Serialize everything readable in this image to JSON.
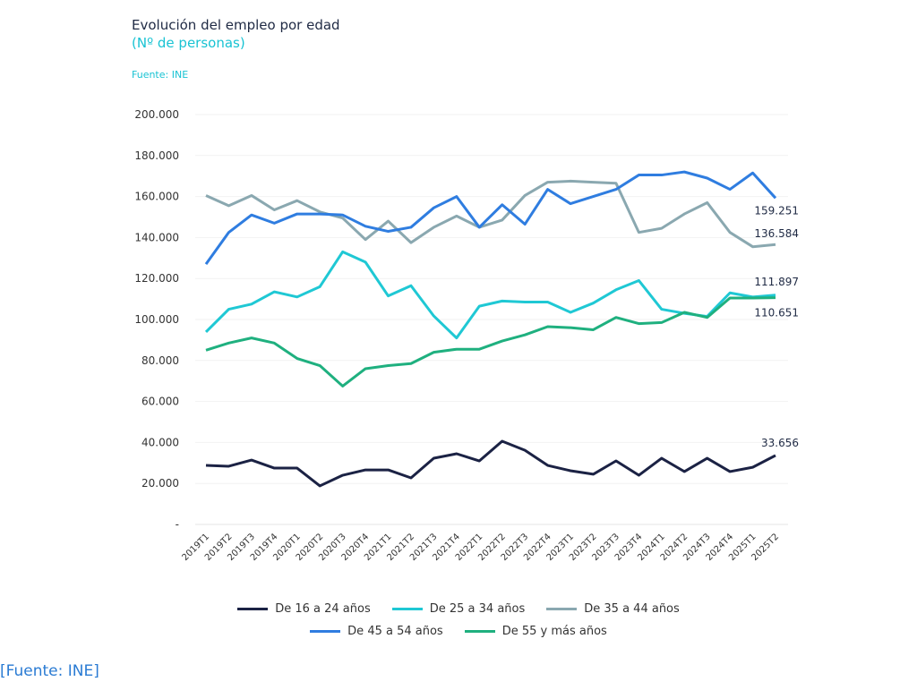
{
  "title": "Evolución del empleo por edad",
  "subtitle": "(Nº de personas)",
  "source": "Fuente: INE",
  "footer_source": "[Fuente: INE]",
  "chart_data": {
    "type": "line",
    "title": "Evolución del empleo por edad",
    "subtitle": "(Nº de personas)",
    "ylim": [
      0,
      200000
    ],
    "yticks": [
      "-",
      "20.000",
      "40.000",
      "60.000",
      "80.000",
      "100.000",
      "120.000",
      "140.000",
      "160.000",
      "180.000",
      "200.000"
    ],
    "grid": true,
    "legend": "bottom",
    "categories": [
      "2019T1",
      "2019T2",
      "2019T3",
      "2019T4",
      "2020T1",
      "2020T2",
      "2020T3",
      "2020T4",
      "2021T1",
      "2021T2",
      "2021T3",
      "2021T4",
      "2022T1",
      "2022T2",
      "2022T3",
      "2022T4",
      "2023T1",
      "2023T2",
      "2023T3",
      "2023T4",
      "2024T1",
      "2024T2",
      "2024T3",
      "2024T4",
      "2025T1",
      "2025T2"
    ],
    "series": [
      {
        "name": "De 16 a 24 años",
        "color": "#1b2244",
        "end_label": "33.656",
        "values": [
          28800,
          28400,
          31400,
          27500,
          27500,
          18800,
          24000,
          26600,
          26600,
          22700,
          32300,
          34500,
          31000,
          40600,
          36200,
          28800,
          26200,
          24500,
          31000,
          24000,
          32300,
          25800,
          32300,
          25800,
          27900,
          33656
        ]
      },
      {
        "name": "De 25 a 34 años",
        "color": "#1fc8d4",
        "end_label": "111.897",
        "values": [
          93900,
          105000,
          107500,
          113500,
          111000,
          116000,
          133000,
          128000,
          111500,
          116500,
          101700,
          91000,
          106500,
          109000,
          108500,
          108500,
          103500,
          108000,
          114500,
          119000,
          105000,
          103000,
          101500,
          113000,
          111000,
          111897
        ]
      },
      {
        "name": "De 35 a 44 años",
        "color": "#8aa8b0",
        "end_label": "136.584",
        "values": [
          160500,
          155500,
          160500,
          153500,
          158000,
          152500,
          149500,
          139000,
          148000,
          137500,
          145000,
          150500,
          145000,
          148500,
          160500,
          167000,
          167500,
          167000,
          166500,
          142500,
          144500,
          151500,
          157000,
          142500,
          135500,
          136584
        ]
      },
      {
        "name": "De 45 a 54 años",
        "color": "#2f7de0",
        "end_label": "159.251",
        "values": [
          127000,
          142500,
          151000,
          147000,
          151500,
          151500,
          151000,
          145500,
          143000,
          145000,
          154500,
          160000,
          145000,
          156000,
          146500,
          163500,
          156500,
          160000,
          163500,
          170500,
          170500,
          172000,
          169000,
          163500,
          171500,
          159251
        ]
      },
      {
        "name": "De 55 y más años",
        "color": "#1fb07f",
        "end_label": "110.651",
        "values": [
          85000,
          88500,
          91000,
          88500,
          81000,
          77500,
          67500,
          76000,
          77500,
          78500,
          84000,
          85500,
          85500,
          89500,
          92500,
          96500,
          96000,
          95000,
          101000,
          98000,
          98500,
          103500,
          101000,
          110500,
          110500,
          110651
        ]
      }
    ],
    "legend_rows": [
      [
        0,
        1,
        2
      ],
      [
        3,
        4
      ]
    ]
  }
}
